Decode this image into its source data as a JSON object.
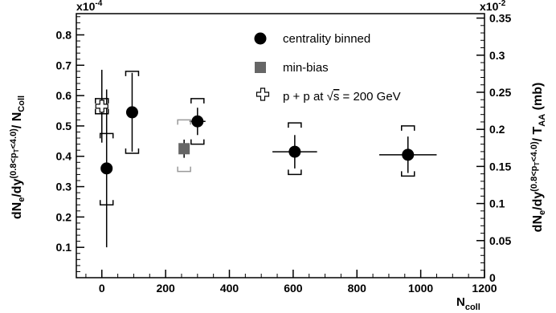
{
  "chart_data": {
    "type": "scatter",
    "title": "",
    "xlabel": "N",
    "xlabel_sub": "coll",
    "ylabel_left": {
      "main": "dN",
      "sub1": "e",
      "mid": "/dy",
      "sup": "(0.8<p",
      "sup_sub": "T",
      "sup_end": "<4.0)",
      "tail": "/ N",
      "tail_sub": "Coll"
    },
    "ylabel_right": {
      "main": "dN",
      "sub1": "e",
      "mid": "/dy",
      "sup": "(0.8<p",
      "sup_sub": "T",
      "sup_end": "<4.0)",
      "tail": "/ T",
      "tail_sub": "AA",
      "unit": " (mb)"
    },
    "xlim": [
      -80,
      1200
    ],
    "ylim_left": [
      0,
      0.87
    ],
    "ylim_right": [
      0,
      0.356
    ],
    "left_multiplier": {
      "base": "x10",
      "exp": "-4"
    },
    "right_multiplier": {
      "base": "x10",
      "exp": "-2"
    },
    "x_ticks": [
      0,
      200,
      400,
      600,
      800,
      1000,
      1200
    ],
    "y_ticks_left": [
      0.1,
      0.2,
      0.3,
      0.4,
      0.5,
      0.6,
      0.7,
      0.8
    ],
    "y_ticks_right": [
      0.05,
      0.1,
      0.15,
      0.2,
      0.25,
      0.3,
      0.35
    ],
    "y_ticks_right_labels": [
      "0.05",
      "0.1",
      "0.15",
      "0.2",
      "0.25",
      "0.3",
      "0.35"
    ],
    "y_zero_right_label": "0",
    "grid": false,
    "legend_position": "top-right",
    "series": [
      {
        "name": "centrality binned",
        "marker": "circle",
        "color": "#000000",
        "points": [
          {
            "x": 15,
            "y": 0.36,
            "xerr": 0,
            "yerr": 0.26,
            "sys_lo": 0.24,
            "sys_hi": 0.475
          },
          {
            "x": 95,
            "y": 0.545,
            "xerr": 0,
            "yerr": 0.13,
            "sys_lo": 0.41,
            "sys_hi": 0.68
          },
          {
            "x": 300,
            "y": 0.515,
            "xerr": 25,
            "yerr": 0.045,
            "sys_lo": 0.44,
            "sys_hi": 0.59
          },
          {
            "x": 605,
            "y": 0.415,
            "xerr": 70,
            "yerr": 0.055,
            "sys_lo": 0.34,
            "sys_hi": 0.51
          },
          {
            "x": 960,
            "y": 0.405,
            "xerr": 90,
            "yerr": 0.06,
            "sys_lo": 0.335,
            "sys_hi": 0.5
          }
        ]
      },
      {
        "name": "min-bias",
        "marker": "square",
        "color": "#666666",
        "points": [
          {
            "x": 258,
            "y": 0.425,
            "xerr": 0,
            "yerr": 0.03,
            "sys_lo": 0.35,
            "sys_hi": 0.52
          }
        ]
      },
      {
        "name_parts": {
          "before": "p + p at ",
          "sqrt": "√",
          "s": "s",
          "after": " = 200 GeV"
        },
        "marker": "open-cross",
        "color": "#000000",
        "points": [
          {
            "x": 0,
            "y": 0.565,
            "xerr": 0,
            "yerr": 0.12,
            "sys_lo": 0.54,
            "sys_hi": 0.59
          }
        ]
      }
    ]
  }
}
